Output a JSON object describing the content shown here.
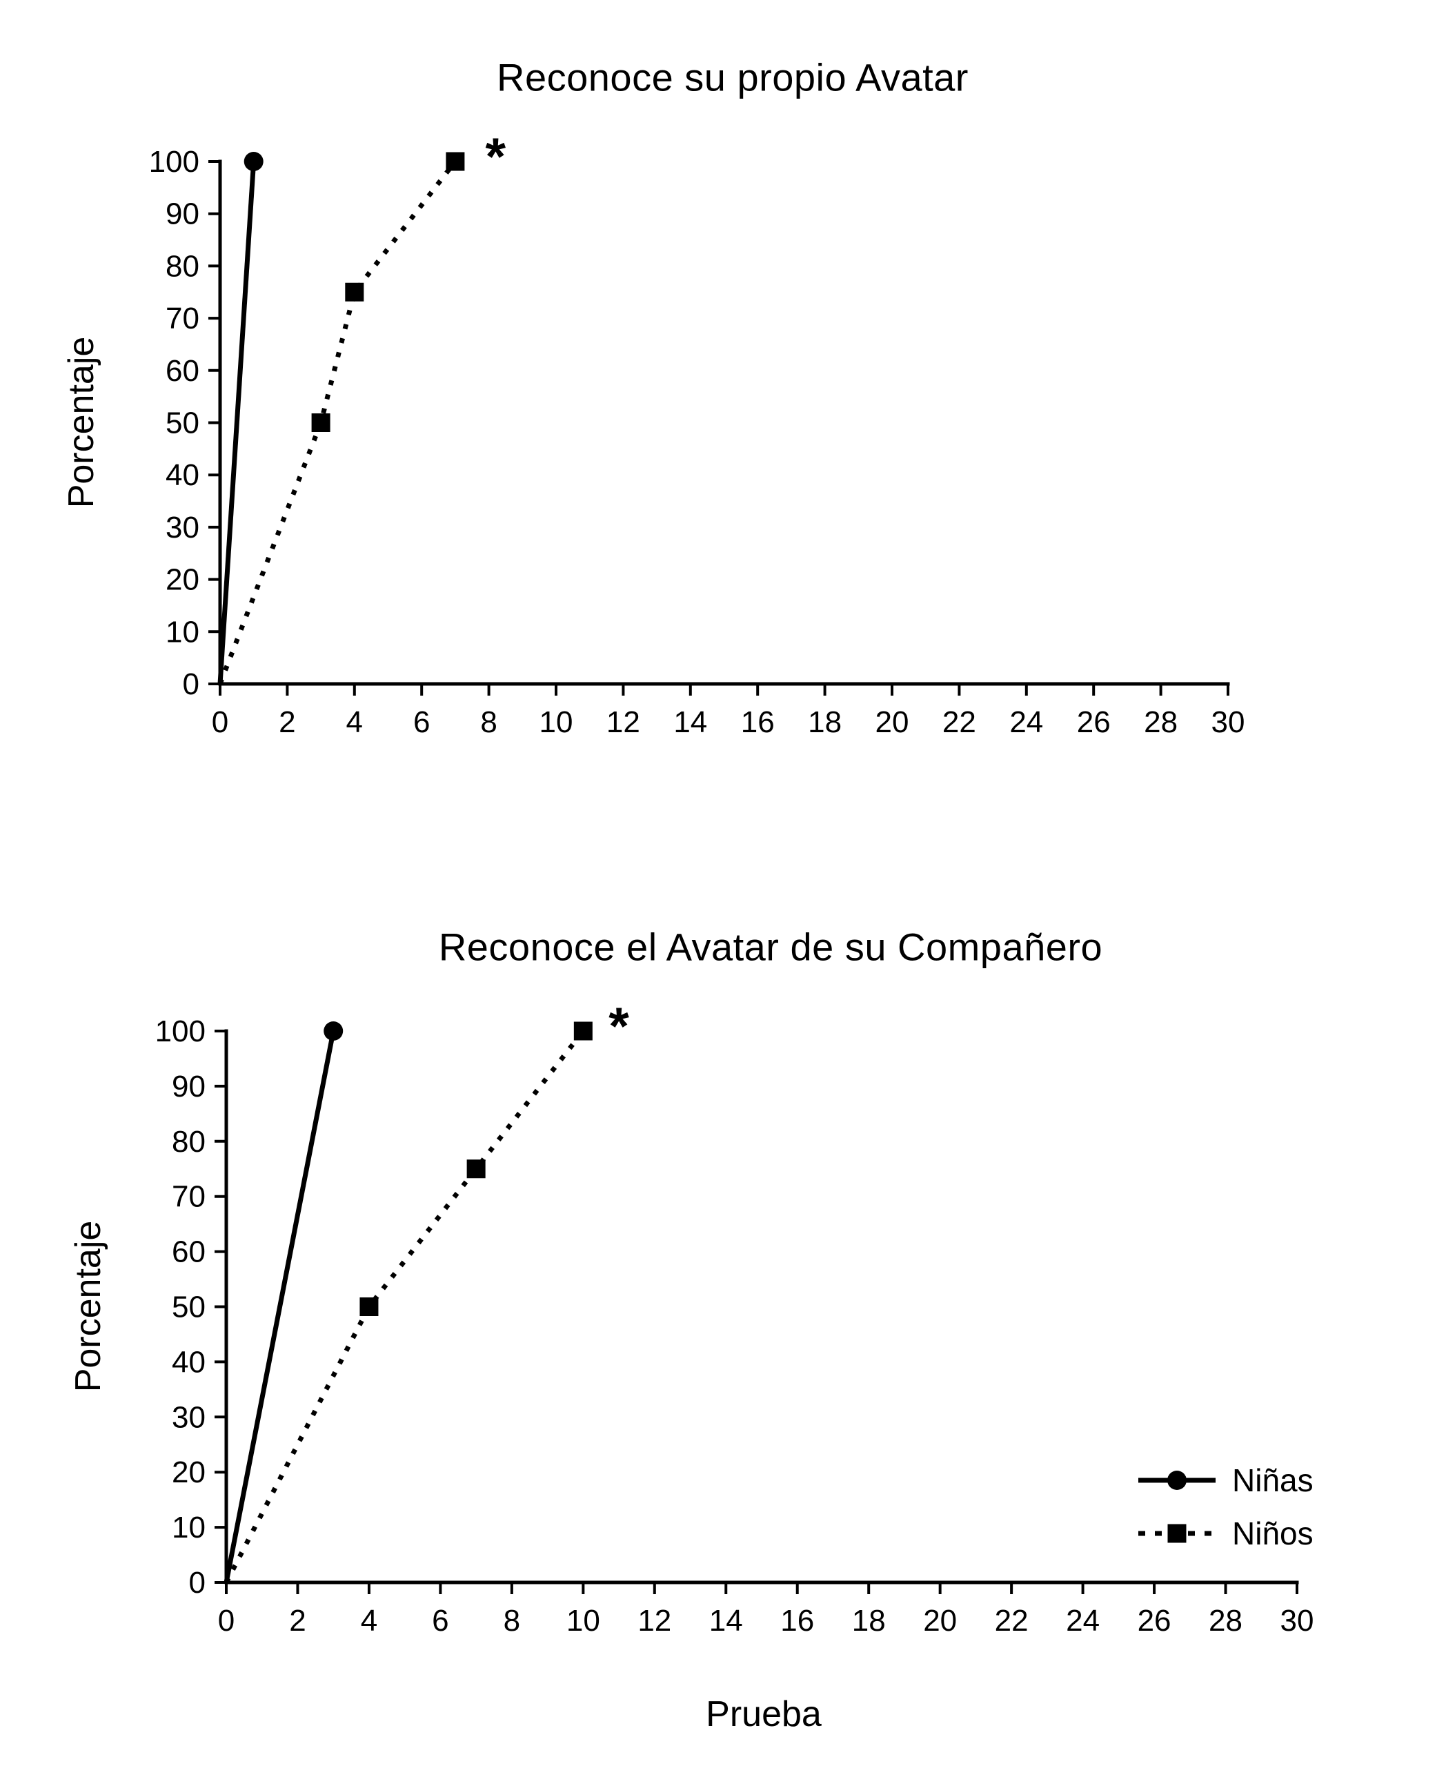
{
  "page": {
    "background": "#ffffff",
    "text_color": "#000000"
  },
  "chart_data": [
    {
      "type": "line",
      "title": "Reconoce su propio Avatar",
      "xlabel": "",
      "ylabel": "Porcentaje",
      "xlim": [
        0,
        30
      ],
      "ylim": [
        0,
        100
      ],
      "xtick_step": 2,
      "ytick_step": 10,
      "grid": false,
      "line_color": "#000000",
      "series": [
        {
          "name": "Niñas",
          "marker": "circle",
          "line": "solid",
          "points": [
            [
              0,
              0
            ],
            [
              1,
              100
            ]
          ]
        },
        {
          "name": "Niños",
          "marker": "square",
          "line": "dotted",
          "points": [
            [
              0,
              0
            ],
            [
              3,
              50
            ],
            [
              4,
              75
            ],
            [
              7,
              100
            ]
          ]
        }
      ],
      "annotation": {
        "text": "*",
        "x": 8.2,
        "y": 100
      }
    },
    {
      "type": "line",
      "title": "Reconoce el Avatar de su Compañero",
      "xlabel": "Prueba",
      "ylabel": "Porcentaje",
      "xlim": [
        0,
        30
      ],
      "ylim": [
        0,
        100
      ],
      "xtick_step": 2,
      "ytick_step": 10,
      "grid": false,
      "line_color": "#000000",
      "series": [
        {
          "name": "Niñas",
          "marker": "circle",
          "line": "solid",
          "points": [
            [
              0,
              0
            ],
            [
              3,
              100
            ]
          ]
        },
        {
          "name": "Niños",
          "marker": "square",
          "line": "dotted",
          "points": [
            [
              0,
              0
            ],
            [
              4,
              50
            ],
            [
              7,
              75
            ],
            [
              10,
              100
            ]
          ]
        }
      ],
      "annotation": {
        "text": "*",
        "x": 11,
        "y": 100
      },
      "legend": {
        "position": "right",
        "entries": [
          "Niñas",
          "Niños"
        ]
      }
    }
  ]
}
